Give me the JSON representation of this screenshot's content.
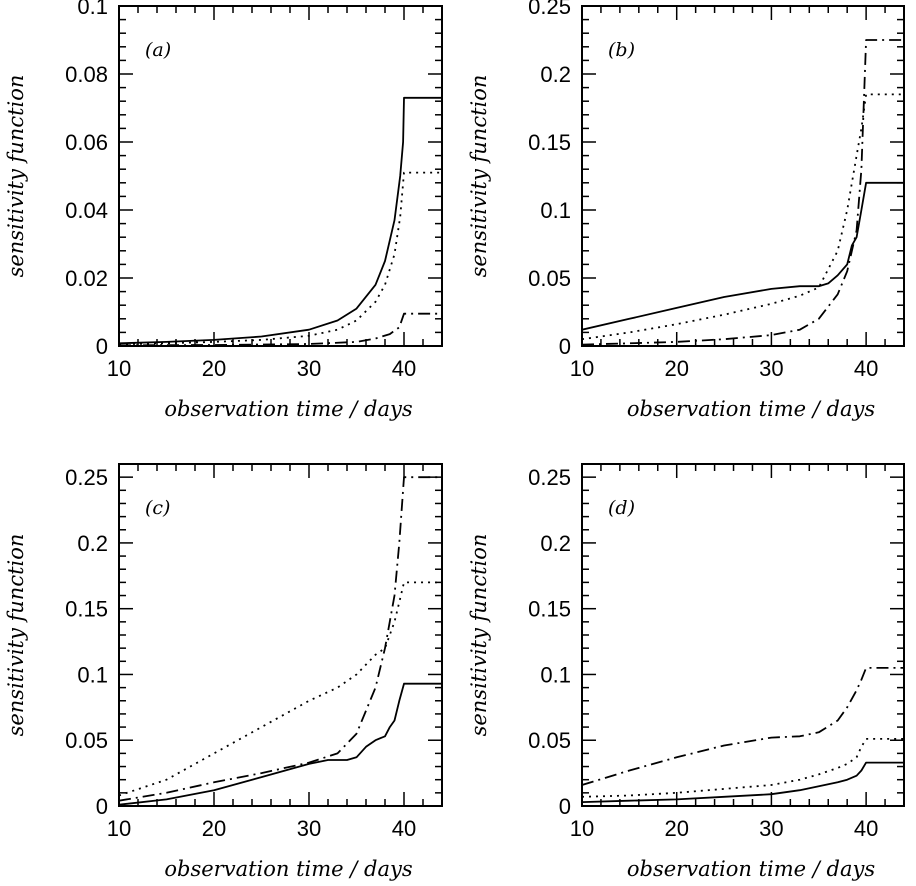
{
  "chart_data": [
    {
      "type": "line",
      "panel_label": "(a)",
      "xlabel": "observation time / days",
      "ylabel": "sensitivity function",
      "xlim": [
        10,
        44
      ],
      "ylim": [
        0,
        0.1
      ],
      "xticks": [
        10,
        20,
        30,
        40
      ],
      "xtick_labels": [
        "10",
        "20",
        "30",
        "40"
      ],
      "yticks": [
        0,
        0.02,
        0.04,
        0.06,
        0.08,
        0.1
      ],
      "ytick_labels": [
        "0",
        "0.02",
        "0.04",
        "0.06",
        "0.08",
        "0.1"
      ],
      "grid": false,
      "series": [
        {
          "style": "solid",
          "points": [
            [
              10,
              0.0008
            ],
            [
              15,
              0.0012
            ],
            [
              20,
              0.0018
            ],
            [
              25,
              0.0028
            ],
            [
              30,
              0.0048
            ],
            [
              33,
              0.0075
            ],
            [
              35,
              0.011
            ],
            [
              37,
              0.018
            ],
            [
              38,
              0.025
            ],
            [
              39,
              0.037
            ],
            [
              39.6,
              0.05
            ],
            [
              39.9,
              0.06
            ],
            [
              40,
              0.073
            ],
            [
              44,
              0.073
            ]
          ]
        },
        {
          "style": "dotted",
          "points": [
            [
              10,
              0.0005
            ],
            [
              15,
              0.0008
            ],
            [
              20,
              0.0012
            ],
            [
              25,
              0.0018
            ],
            [
              30,
              0.003
            ],
            [
              33,
              0.0048
            ],
            [
              35,
              0.0075
            ],
            [
              37,
              0.013
            ],
            [
              38,
              0.018
            ],
            [
              39,
              0.027
            ],
            [
              39.6,
              0.038
            ],
            [
              40,
              0.051
            ],
            [
              44,
              0.051
            ]
          ]
        },
        {
          "style": "dash-dot",
          "points": [
            [
              10,
              0.0002
            ],
            [
              20,
              0.0003
            ],
            [
              30,
              0.0006
            ],
            [
              35,
              0.0012
            ],
            [
              37,
              0.0022
            ],
            [
              38.5,
              0.0035
            ],
            [
              39.5,
              0.0055
            ],
            [
              40,
              0.0095
            ],
            [
              44,
              0.0095
            ]
          ]
        }
      ]
    },
    {
      "type": "line",
      "panel_label": "(b)",
      "xlabel": "observation time / days",
      "ylabel": "sensitivity function",
      "xlim": [
        10,
        44
      ],
      "ylim": [
        0,
        0.25
      ],
      "xticks": [
        10,
        20,
        30,
        40
      ],
      "xtick_labels": [
        "10",
        "20",
        "30",
        "40"
      ],
      "yticks": [
        0,
        0.05,
        0.1,
        0.15,
        0.2,
        0.25
      ],
      "ytick_labels": [
        "0",
        "0.05",
        "0.1",
        "0.15",
        "0.2",
        "0.25"
      ],
      "grid": false,
      "series": [
        {
          "style": "solid",
          "points": [
            [
              10,
              0.012
            ],
            [
              15,
              0.02
            ],
            [
              20,
              0.028
            ],
            [
              25,
              0.036
            ],
            [
              30,
              0.042
            ],
            [
              33,
              0.044
            ],
            [
              35,
              0.044
            ],
            [
              36,
              0.046
            ],
            [
              37,
              0.052
            ],
            [
              38,
              0.06
            ],
            [
              38.5,
              0.074
            ],
            [
              39,
              0.08
            ],
            [
              39.5,
              0.1
            ],
            [
              40,
              0.12
            ],
            [
              44,
              0.12
            ]
          ]
        },
        {
          "style": "dotted",
          "points": [
            [
              10,
              0.005
            ],
            [
              15,
              0.01
            ],
            [
              20,
              0.016
            ],
            [
              25,
              0.023
            ],
            [
              30,
              0.031
            ],
            [
              33,
              0.037
            ],
            [
              35,
              0.043
            ],
            [
              37,
              0.07
            ],
            [
              38,
              0.1
            ],
            [
              39,
              0.14
            ],
            [
              39.5,
              0.16
            ],
            [
              40,
              0.185
            ],
            [
              44,
              0.185
            ]
          ]
        },
        {
          "style": "dash-dot",
          "points": [
            [
              10,
              0.001
            ],
            [
              15,
              0.002
            ],
            [
              20,
              0.003
            ],
            [
              25,
              0.005
            ],
            [
              30,
              0.008
            ],
            [
              33,
              0.012
            ],
            [
              35,
              0.02
            ],
            [
              37,
              0.038
            ],
            [
              38,
              0.055
            ],
            [
              39,
              0.085
            ],
            [
              39.5,
              0.13
            ],
            [
              40,
              0.225
            ],
            [
              44,
              0.225
            ]
          ]
        }
      ]
    },
    {
      "type": "line",
      "panel_label": "(c)",
      "xlabel": "observation time / days",
      "ylabel": "sensitivity function",
      "xlim": [
        10,
        44
      ],
      "ylim": [
        0,
        0.26
      ],
      "xticks": [
        10,
        20,
        30,
        40
      ],
      "xtick_labels": [
        "10",
        "20",
        "30",
        "40"
      ],
      "yticks": [
        0,
        0.05,
        0.1,
        0.15,
        0.2,
        0.25
      ],
      "ytick_labels": [
        "0",
        "0.05",
        "0.1",
        "0.15",
        "0.2",
        "0.25"
      ],
      "grid": false,
      "series": [
        {
          "style": "solid",
          "points": [
            [
              10,
              0.001
            ],
            [
              15,
              0.005
            ],
            [
              20,
              0.012
            ],
            [
              25,
              0.022
            ],
            [
              30,
              0.032
            ],
            [
              32,
              0.035
            ],
            [
              34,
              0.035
            ],
            [
              35,
              0.037
            ],
            [
              36,
              0.045
            ],
            [
              37,
              0.05
            ],
            [
              38,
              0.053
            ],
            [
              38.5,
              0.06
            ],
            [
              39,
              0.065
            ],
            [
              39.5,
              0.08
            ],
            [
              40,
              0.093
            ],
            [
              44,
              0.093
            ]
          ]
        },
        {
          "style": "dotted",
          "points": [
            [
              10,
              0.008
            ],
            [
              15,
              0.02
            ],
            [
              20,
              0.04
            ],
            [
              25,
              0.06
            ],
            [
              28,
              0.072
            ],
            [
              30,
              0.08
            ],
            [
              33,
              0.09
            ],
            [
              35,
              0.1
            ],
            [
              37,
              0.115
            ],
            [
              38,
              0.12
            ],
            [
              39,
              0.14
            ],
            [
              39.5,
              0.155
            ],
            [
              40,
              0.17
            ],
            [
              44,
              0.17
            ]
          ]
        },
        {
          "style": "dash-dot",
          "points": [
            [
              10,
              0.004
            ],
            [
              15,
              0.01
            ],
            [
              20,
              0.018
            ],
            [
              25,
              0.025
            ],
            [
              30,
              0.033
            ],
            [
              33,
              0.04
            ],
            [
              35,
              0.055
            ],
            [
              37,
              0.09
            ],
            [
              38,
              0.12
            ],
            [
              39,
              0.16
            ],
            [
              39.5,
              0.2
            ],
            [
              40,
              0.25
            ],
            [
              44,
              0.25
            ]
          ]
        }
      ]
    },
    {
      "type": "line",
      "panel_label": "(d)",
      "xlabel": "observation time / days",
      "ylabel": "sensitivity function",
      "xlim": [
        10,
        44
      ],
      "ylim": [
        0,
        0.26
      ],
      "xticks": [
        10,
        20,
        30,
        40
      ],
      "xtick_labels": [
        "10",
        "20",
        "30",
        "40"
      ],
      "yticks": [
        0,
        0.05,
        0.1,
        0.15,
        0.2,
        0.25
      ],
      "ytick_labels": [
        "0",
        "0.05",
        "0.1",
        "0.15",
        "0.2",
        "0.25"
      ],
      "grid": false,
      "series": [
        {
          "style": "solid",
          "points": [
            [
              10,
              0.003
            ],
            [
              15,
              0.004
            ],
            [
              20,
              0.005
            ],
            [
              25,
              0.007
            ],
            [
              30,
              0.009
            ],
            [
              33,
              0.012
            ],
            [
              35,
              0.015
            ],
            [
              37,
              0.018
            ],
            [
              38,
              0.02
            ],
            [
              39,
              0.023
            ],
            [
              39.5,
              0.027
            ],
            [
              40,
              0.033
            ],
            [
              44,
              0.033
            ]
          ]
        },
        {
          "style": "dotted",
          "points": [
            [
              10,
              0.007
            ],
            [
              15,
              0.008
            ],
            [
              20,
              0.01
            ],
            [
              25,
              0.013
            ],
            [
              30,
              0.016
            ],
            [
              33,
              0.02
            ],
            [
              35,
              0.024
            ],
            [
              37,
              0.029
            ],
            [
              38,
              0.032
            ],
            [
              39,
              0.037
            ],
            [
              39.5,
              0.045
            ],
            [
              40,
              0.051
            ],
            [
              44,
              0.051
            ]
          ]
        },
        {
          "style": "dash-dot",
          "points": [
            [
              10,
              0.016
            ],
            [
              15,
              0.027
            ],
            [
              20,
              0.037
            ],
            [
              25,
              0.046
            ],
            [
              30,
              0.052
            ],
            [
              33,
              0.053
            ],
            [
              35,
              0.056
            ],
            [
              37,
              0.065
            ],
            [
              38,
              0.075
            ],
            [
              39,
              0.088
            ],
            [
              39.5,
              0.096
            ],
            [
              40,
              0.105
            ],
            [
              44,
              0.105
            ]
          ]
        }
      ]
    }
  ]
}
